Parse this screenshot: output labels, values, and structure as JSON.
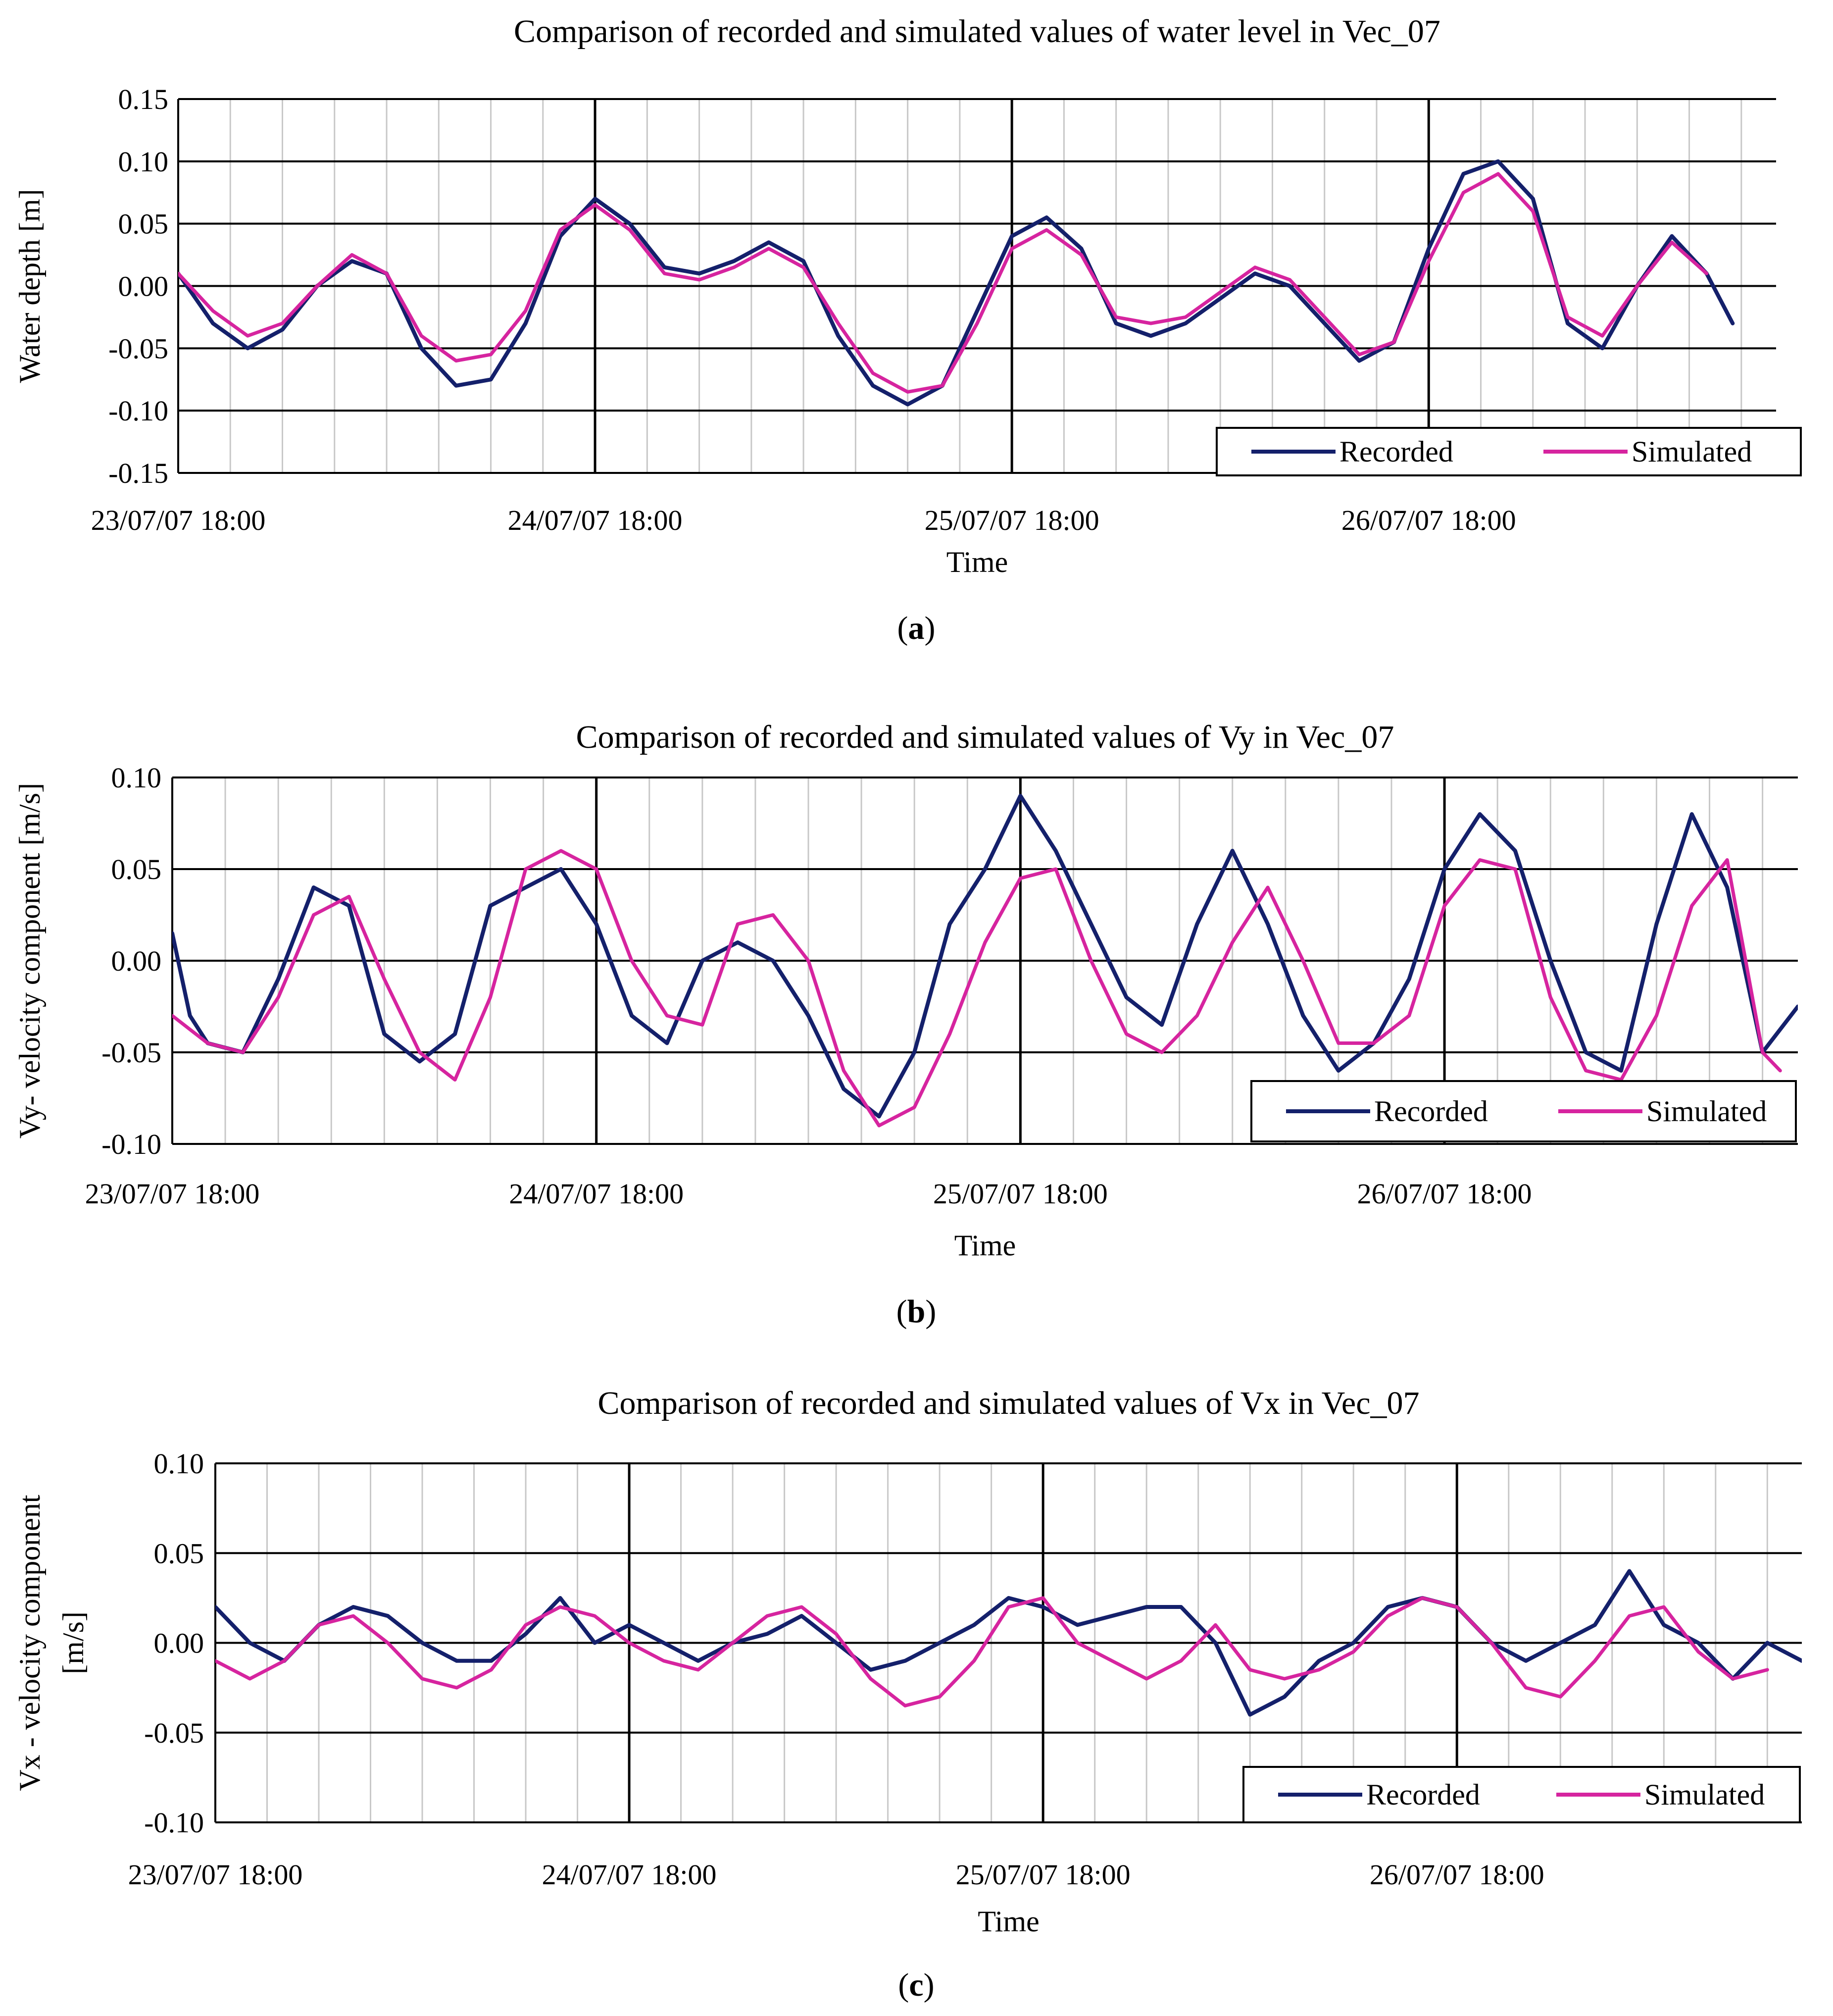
{
  "figure": {
    "panel_letters": [
      "a",
      "b",
      "c"
    ]
  },
  "colors": {
    "recorded": "#14206b",
    "simulated": "#d6249f",
    "major_grid": "#000000",
    "minor_grid": "#c8c8c8",
    "background": "#ffffff"
  },
  "chart_data": [
    {
      "type": "line",
      "panel": "a",
      "title": "Comparison of recorded and simulated values of water level in Vec_07",
      "xlabel": "Time",
      "ylabel": "Water depth [m]",
      "ylim": [
        -0.15,
        0.15
      ],
      "yticks": [
        -0.15,
        -0.1,
        -0.05,
        0.0,
        0.05,
        0.1,
        0.15
      ],
      "ytick_labels": [
        "-0.15",
        "-0.10",
        "-0.05",
        "0.00",
        "0.05",
        "0.10",
        "0.15"
      ],
      "x_unit": "hours since 23/07/07 18:00",
      "xlim": [
        0,
        92
      ],
      "xtick_labels": [
        "23/07/07 18:00",
        "24/07/07 18:00",
        "25/07/07 18:00",
        "26/07/07 18:00"
      ],
      "legend": [
        "Recorded",
        "Simulated"
      ],
      "legend_position": "bottom-right",
      "series": [
        {
          "name": "Recorded",
          "color": "#14206b",
          "x": [
            0,
            2,
            4,
            6,
            8,
            10,
            12,
            14,
            16,
            18,
            20,
            22,
            24,
            26,
            28,
            30,
            32,
            34,
            36,
            38,
            40,
            42,
            44,
            46,
            48,
            50,
            52,
            54,
            56,
            58,
            60,
            62,
            64,
            66,
            68,
            70,
            72,
            74,
            76,
            78,
            80,
            82,
            84,
            86,
            88,
            89.5
          ],
          "values": [
            0.01,
            -0.03,
            -0.05,
            -0.035,
            0.0,
            0.02,
            0.01,
            -0.05,
            -0.08,
            -0.075,
            -0.03,
            0.04,
            0.07,
            0.05,
            0.015,
            0.01,
            0.02,
            0.035,
            0.02,
            -0.04,
            -0.08,
            -0.095,
            -0.08,
            -0.02,
            0.04,
            0.055,
            0.03,
            -0.03,
            -0.04,
            -0.03,
            -0.01,
            0.01,
            0.0,
            -0.03,
            -0.06,
            -0.045,
            0.03,
            0.09,
            0.1,
            0.07,
            -0.03,
            -0.05,
            0.0,
            0.04,
            0.01,
            -0.03
          ]
        },
        {
          "name": "Simulated",
          "color": "#d6249f",
          "x": [
            0,
            2,
            4,
            6,
            8,
            10,
            12,
            14,
            16,
            18,
            20,
            22,
            24,
            26,
            28,
            30,
            32,
            34,
            36,
            38,
            40,
            42,
            44,
            46,
            48,
            50,
            52,
            54,
            56,
            58,
            60,
            62,
            64,
            66,
            68,
            70,
            72,
            74,
            76,
            78,
            80,
            82,
            84,
            86,
            88
          ],
          "values": [
            0.01,
            -0.02,
            -0.04,
            -0.03,
            0.0,
            0.025,
            0.01,
            -0.04,
            -0.06,
            -0.055,
            -0.02,
            0.045,
            0.065,
            0.045,
            0.01,
            0.005,
            0.015,
            0.03,
            0.015,
            -0.03,
            -0.07,
            -0.085,
            -0.08,
            -0.03,
            0.03,
            0.045,
            0.025,
            -0.025,
            -0.03,
            -0.025,
            -0.005,
            0.015,
            0.005,
            -0.025,
            -0.055,
            -0.045,
            0.02,
            0.075,
            0.09,
            0.06,
            -0.025,
            -0.04,
            0.0,
            0.035,
            0.01
          ]
        }
      ]
    },
    {
      "type": "line",
      "panel": "b",
      "title": "Comparison of recorded and simulated values of Vy in Vec_07",
      "xlabel": "Time",
      "ylabel": "Vy- velocity component [m/s]",
      "ylim": [
        -0.1,
        0.1
      ],
      "yticks": [
        -0.1,
        -0.05,
        0.0,
        0.05,
        0.1
      ],
      "ytick_labels": [
        "-0.10",
        "-0.05",
        "0.00",
        "0.05",
        "0.10"
      ],
      "x_unit": "hours since 23/07/07 18:00",
      "xlim": [
        0,
        92
      ],
      "xtick_labels": [
        "23/07/07 18:00",
        "24/07/07 18:00",
        "25/07/07 18:00",
        "26/07/07 18:00"
      ],
      "legend": [
        "Recorded",
        "Simulated"
      ],
      "legend_position": "bottom-right",
      "series": [
        {
          "name": "Recorded",
          "color": "#14206b",
          "x": [
            0,
            1,
            2,
            4,
            6,
            8,
            10,
            12,
            14,
            16,
            18,
            20,
            22,
            24,
            26,
            28,
            30,
            32,
            34,
            36,
            38,
            40,
            42,
            44,
            46,
            48,
            50,
            52,
            54,
            56,
            58,
            60,
            62,
            64,
            66,
            68,
            70,
            72,
            74,
            76,
            78,
            80,
            82,
            84,
            86,
            88,
            90,
            92
          ],
          "values": [
            0.015,
            -0.03,
            -0.045,
            -0.05,
            -0.01,
            0.04,
            0.03,
            -0.04,
            -0.055,
            -0.04,
            0.03,
            0.04,
            0.05,
            0.02,
            -0.03,
            -0.045,
            0.0,
            0.01,
            0.0,
            -0.03,
            -0.07,
            -0.085,
            -0.05,
            0.02,
            0.05,
            0.09,
            0.06,
            0.02,
            -0.02,
            -0.035,
            0.02,
            0.06,
            0.02,
            -0.03,
            -0.06,
            -0.045,
            -0.01,
            0.05,
            0.08,
            0.06,
            0.0,
            -0.05,
            -0.06,
            0.02,
            0.08,
            0.04,
            -0.05,
            -0.025
          ]
        },
        {
          "name": "Simulated",
          "color": "#d6249f",
          "x": [
            0,
            2,
            4,
            6,
            8,
            10,
            12,
            14,
            16,
            18,
            20,
            22,
            24,
            26,
            28,
            30,
            32,
            34,
            36,
            38,
            40,
            42,
            44,
            46,
            48,
            50,
            52,
            54,
            56,
            58,
            60,
            62,
            64,
            66,
            68,
            70,
            72,
            74,
            76,
            78,
            80,
            82,
            84,
            86,
            88,
            90,
            91
          ],
          "values": [
            -0.03,
            -0.045,
            -0.05,
            -0.02,
            0.025,
            0.035,
            -0.01,
            -0.05,
            -0.065,
            -0.02,
            0.05,
            0.06,
            0.05,
            0.0,
            -0.03,
            -0.035,
            0.02,
            0.025,
            0.0,
            -0.06,
            -0.09,
            -0.08,
            -0.04,
            0.01,
            0.045,
            0.05,
            0.0,
            -0.04,
            -0.05,
            -0.03,
            0.01,
            0.04,
            0.0,
            -0.045,
            -0.045,
            -0.03,
            0.03,
            0.055,
            0.05,
            -0.02,
            -0.06,
            -0.065,
            -0.03,
            0.03,
            0.055,
            -0.05,
            -0.06
          ]
        }
      ]
    },
    {
      "type": "line",
      "panel": "c",
      "title": "Comparison of recorded and simulated values of Vx in Vec_07",
      "xlabel": "Time",
      "ylabel": "Vx - velocity component [m/s]",
      "ylabel_lines": [
        "Vx - velocity component",
        "[m/s]"
      ],
      "ylim": [
        -0.1,
        0.1
      ],
      "yticks": [
        -0.1,
        -0.05,
        0.0,
        0.05,
        0.1
      ],
      "ytick_labels": [
        "-0.10",
        "-0.05",
        "0.00",
        "0.05",
        "0.10"
      ],
      "x_unit": "hours since 23/07/07 18:00",
      "xlim": [
        0,
        92
      ],
      "xtick_labels": [
        "23/07/07 18:00",
        "24/07/07 18:00",
        "25/07/07 18:00",
        "26/07/07 18:00"
      ],
      "legend": [
        "Recorded",
        "Simulated"
      ],
      "legend_position": "bottom-right",
      "series": [
        {
          "name": "Recorded",
          "color": "#14206b",
          "x": [
            0,
            2,
            4,
            6,
            8,
            10,
            12,
            14,
            16,
            18,
            20,
            22,
            24,
            26,
            28,
            30,
            32,
            34,
            36,
            38,
            40,
            42,
            44,
            46,
            48,
            50,
            52,
            54,
            56,
            58,
            60,
            62,
            64,
            66,
            68,
            70,
            72,
            74,
            76,
            78,
            80,
            82,
            84,
            86,
            88,
            90,
            92
          ],
          "values": [
            0.02,
            0.0,
            -0.01,
            0.01,
            0.02,
            0.015,
            0.0,
            -0.01,
            -0.01,
            0.005,
            0.025,
            0.0,
            0.01,
            0.0,
            -0.01,
            0.0,
            0.005,
            0.015,
            0.0,
            -0.015,
            -0.01,
            0.0,
            0.01,
            0.025,
            0.02,
            0.01,
            0.015,
            0.02,
            0.02,
            0.0,
            -0.04,
            -0.03,
            -0.01,
            0.0,
            0.02,
            0.025,
            0.02,
            0.0,
            -0.01,
            0.0,
            0.01,
            0.04,
            0.01,
            0.0,
            -0.02,
            0.0,
            -0.01
          ]
        },
        {
          "name": "Simulated",
          "color": "#d6249f",
          "x": [
            0,
            2,
            4,
            6,
            8,
            10,
            12,
            14,
            16,
            18,
            20,
            22,
            24,
            26,
            28,
            30,
            32,
            34,
            36,
            38,
            40,
            42,
            44,
            46,
            48,
            50,
            52,
            54,
            56,
            58,
            60,
            62,
            64,
            66,
            68,
            70,
            72,
            74,
            76,
            78,
            80,
            82,
            84,
            86,
            88,
            90
          ],
          "values": [
            -0.01,
            -0.02,
            -0.01,
            0.01,
            0.015,
            0.0,
            -0.02,
            -0.025,
            -0.015,
            0.01,
            0.02,
            0.015,
            0.0,
            -0.01,
            -0.015,
            0.0,
            0.015,
            0.02,
            0.005,
            -0.02,
            -0.035,
            -0.03,
            -0.01,
            0.02,
            0.025,
            0.0,
            -0.01,
            -0.02,
            -0.01,
            0.01,
            -0.015,
            -0.02,
            -0.015,
            -0.005,
            0.015,
            0.025,
            0.02,
            0.0,
            -0.025,
            -0.03,
            -0.01,
            0.015,
            0.02,
            -0.005,
            -0.02,
            -0.015
          ]
        }
      ]
    }
  ]
}
